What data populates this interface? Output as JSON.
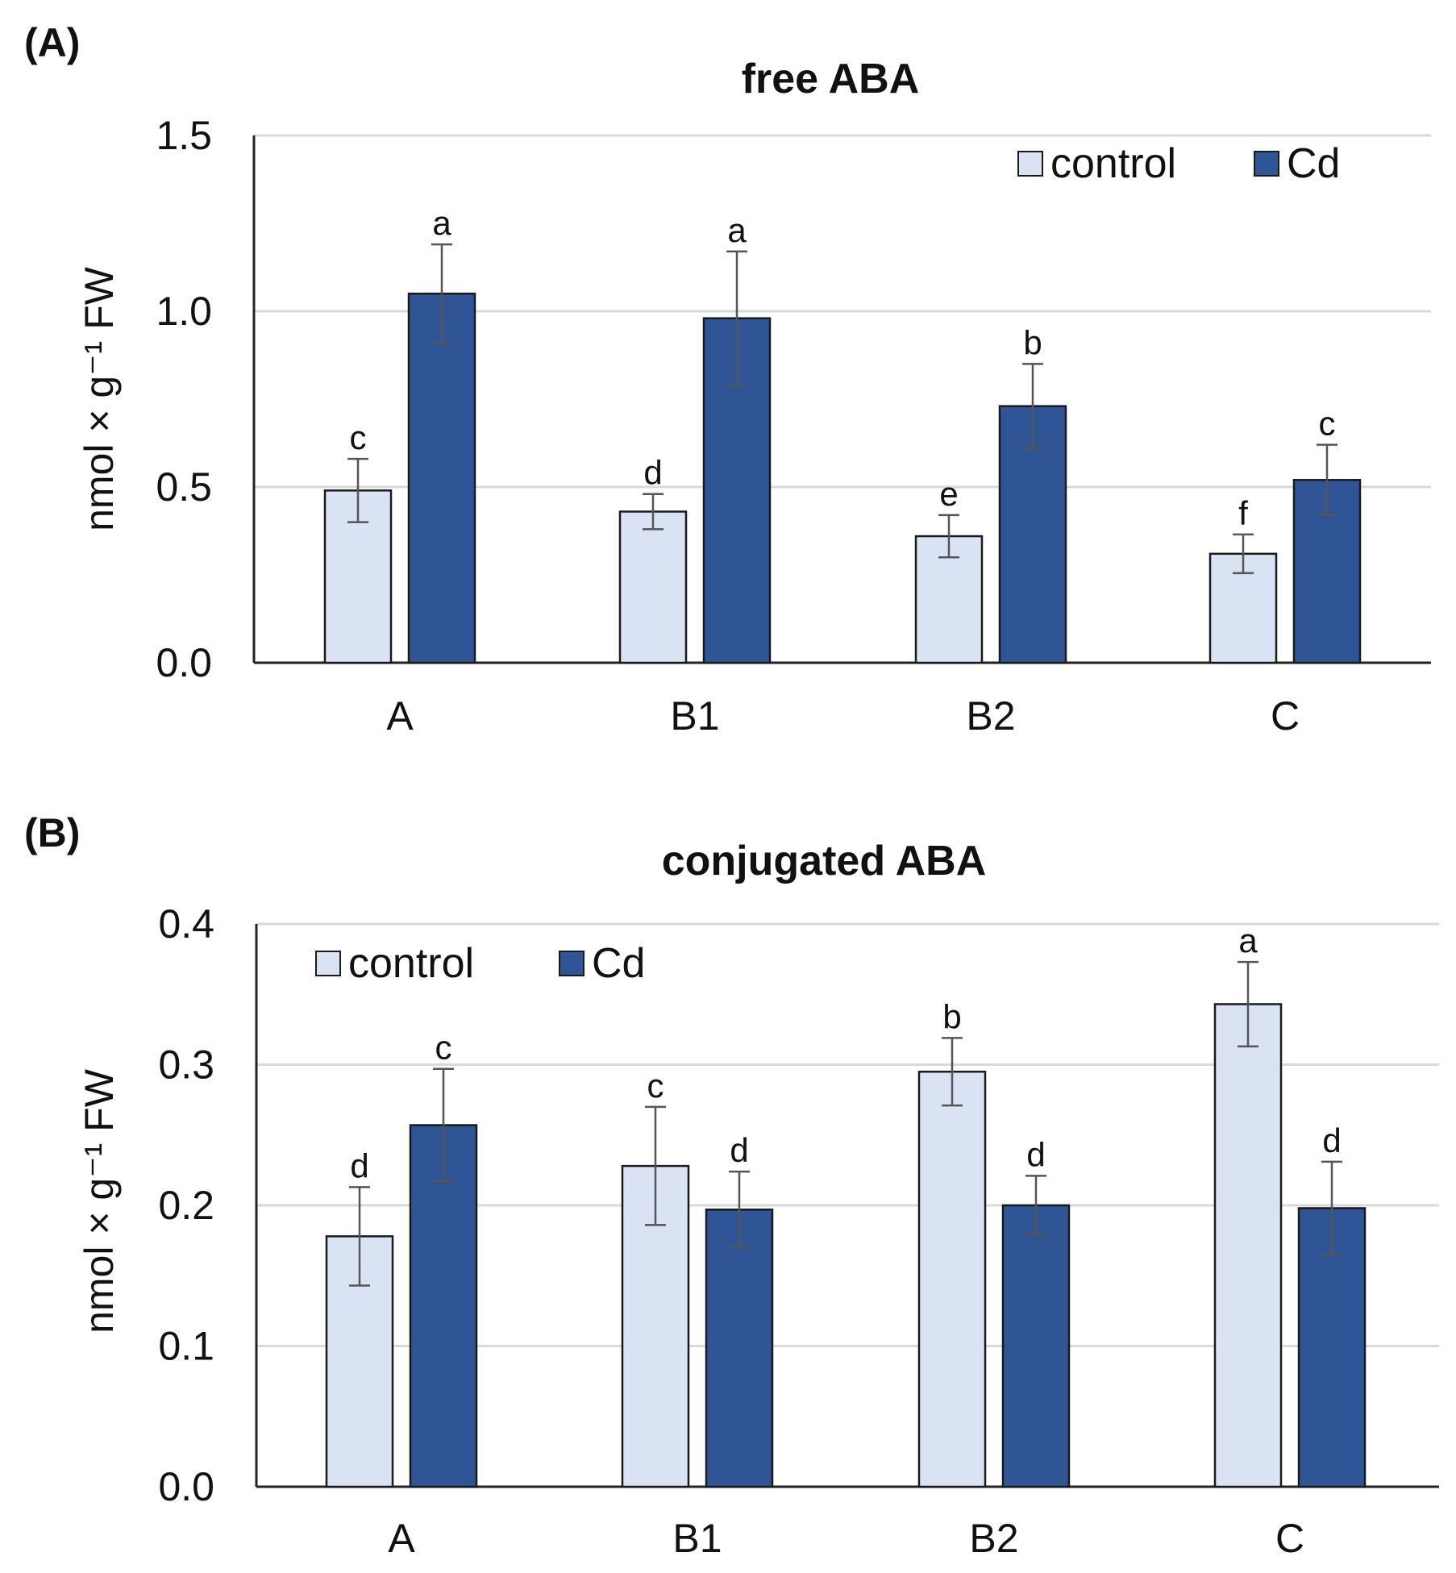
{
  "chart_data": [
    {
      "panel_label": "(A)",
      "type": "bar",
      "title": "free ABA",
      "ylabel": "nmol × g⁻¹ FW",
      "xlabel": "",
      "categories": [
        "A",
        "B1",
        "B2",
        "C"
      ],
      "ylim": [
        0,
        1.5
      ],
      "yticks": [
        "0.0",
        "0.5",
        "1.0",
        "1.5"
      ],
      "grid": true,
      "legend_position": "top-right",
      "series": [
        {
          "name": "control",
          "color": "#dae3f3",
          "values": [
            0.49,
            0.43,
            0.36,
            0.31
          ],
          "errors": [
            0.09,
            0.05,
            0.06,
            0.055
          ],
          "labels": [
            "c",
            "d",
            "e",
            "f"
          ]
        },
        {
          "name": "Cd",
          "color": "#2f5597",
          "values": [
            1.05,
            0.98,
            0.73,
            0.52
          ],
          "errors": [
            0.14,
            0.19,
            0.12,
            0.1
          ],
          "labels": [
            "a",
            "a",
            "b",
            "c"
          ]
        }
      ]
    },
    {
      "panel_label": "(B)",
      "type": "bar",
      "title": "conjugated ABA",
      "ylabel": "nmol × g⁻¹ FW",
      "xlabel": "",
      "categories": [
        "A",
        "B1",
        "B2",
        "C"
      ],
      "ylim": [
        0,
        0.4
      ],
      "yticks": [
        "0.0",
        "0.1",
        "0.2",
        "0.3",
        "0.4"
      ],
      "grid": true,
      "legend_position": "top-left",
      "series": [
        {
          "name": "control",
          "color": "#dae3f3",
          "values": [
            0.178,
            0.228,
            0.295,
            0.343
          ],
          "errors": [
            0.035,
            0.042,
            0.024,
            0.03
          ],
          "labels": [
            "d",
            "c",
            "b",
            "a"
          ]
        },
        {
          "name": "Cd",
          "color": "#2f5597",
          "values": [
            0.257,
            0.197,
            0.2,
            0.198
          ],
          "errors": [
            0.04,
            0.027,
            0.021,
            0.033
          ],
          "labels": [
            "c",
            "d",
            "d",
            "d"
          ]
        }
      ]
    }
  ]
}
